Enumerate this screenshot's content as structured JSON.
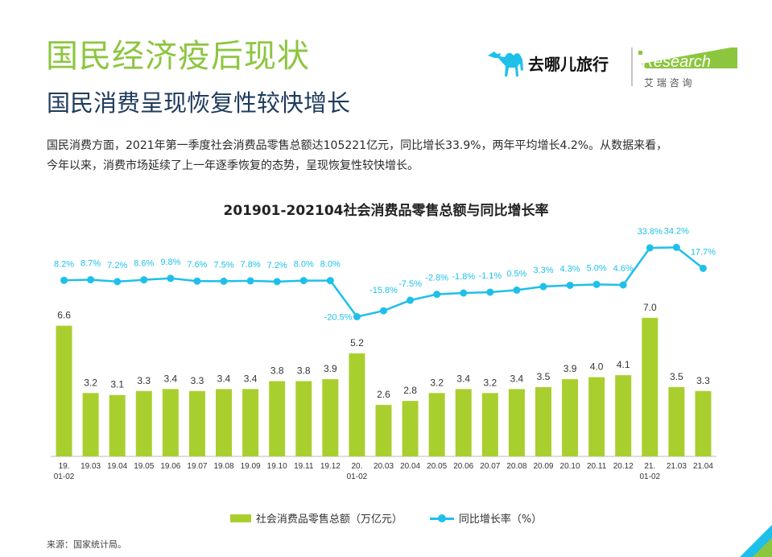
{
  "header": {
    "title": "国民经济疫后现状",
    "subtitle": "国民消费呈现恢复性较快增长",
    "body_line1": "国民消费方面，2021年第一季度社会消费品零售总额达105221亿元，同比增长33.9%，两年平均增长4.2%。从数据来看，",
    "body_line2": "今年以来，消费市场延续了上一年逐季恢复的态势，呈现恢复性较快增长。"
  },
  "logo": {
    "qunar_text": "去哪儿旅行",
    "iresearch_text": "iResearch",
    "iresearch_cn": "艾 瑞 咨 询",
    "qunar_icon": "camel-icon"
  },
  "colors": {
    "title_green": "#8cc63f",
    "bar": "#a9cf2e",
    "line": "#1ec0ea",
    "subtitle": "#1f3b5c"
  },
  "chart_data": {
    "type": "bar",
    "title": "201901-202104社会消费品零售总额与同比增长率",
    "categories": [
      "19.\n01-02",
      "19.03",
      "19.04",
      "19.05",
      "19.06",
      "19.07",
      "19.08",
      "19.09",
      "19.10",
      "19.11",
      "19.12",
      "20.\n01-02",
      "20.03",
      "20.04",
      "20.05",
      "20.06",
      "20.07",
      "20.08",
      "20.09",
      "20.10",
      "20.11",
      "20.12",
      "21.\n01-02",
      "21.03",
      "21.04"
    ],
    "series": [
      {
        "name": "社会消费品零售总额（万亿元）",
        "type": "bar",
        "values": [
          6.6,
          3.2,
          3.1,
          3.3,
          3.4,
          3.3,
          3.4,
          3.4,
          3.8,
          3.8,
          3.9,
          5.2,
          2.6,
          2.8,
          3.2,
          3.4,
          3.2,
          3.4,
          3.5,
          3.9,
          4.0,
          4.1,
          7.0,
          3.5,
          3.3
        ],
        "labels": [
          "6.6",
          "3.2",
          "3.1",
          "3.3",
          "3.4",
          "3.3",
          "3.4",
          "3.4",
          "3.8",
          "3.8",
          "3.9",
          "5.2",
          "2.6",
          "2.8",
          "3.2",
          "3.4",
          "3.2",
          "3.4",
          "3.5",
          "3.9",
          "4.0",
          "4.1",
          "7.0",
          "3.5",
          "3.3"
        ]
      },
      {
        "name": "同比增长率（%）",
        "type": "line",
        "values": [
          8.2,
          8.7,
          7.2,
          8.6,
          9.8,
          7.6,
          7.5,
          7.8,
          7.2,
          8.0,
          8.0,
          -20.5,
          -15.8,
          -7.5,
          -2.8,
          -1.8,
          -1.1,
          0.5,
          3.3,
          4.3,
          5.0,
          4.6,
          33.8,
          34.2,
          17.7
        ],
        "labels": [
          "8.2%",
          "8.7%",
          "7.2%",
          "8.6%",
          "9.8%",
          "7.6%",
          "7.5%",
          "7.8%",
          "7.2%",
          "8.0%",
          "8.0%",
          "-20.5%",
          "-15.8%",
          "-7.5%",
          "-2.8%",
          "-1.8%",
          "-1.1%",
          "0.5%",
          "3.3%",
          "4.3%",
          "5.0%",
          "4.6%",
          "33.8%",
          "34.2%",
          "17.7%"
        ]
      }
    ],
    "legend_position": "bottom",
    "grid": false
  },
  "source": "来源：国家统计局。"
}
